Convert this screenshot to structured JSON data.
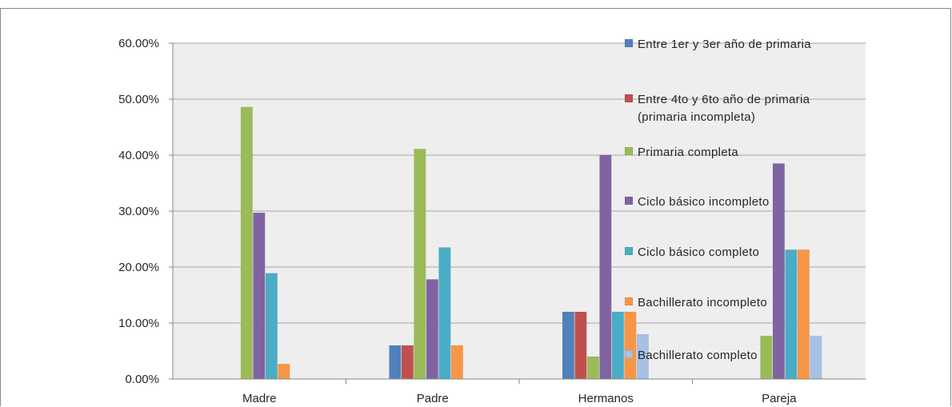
{
  "chart_data": {
    "type": "bar",
    "categories": [
      "Madre",
      "Padre",
      "Hermanos",
      "Pareja"
    ],
    "y_tick_labels": [
      "0.00%",
      "10.00%",
      "20.00%",
      "30.00%",
      "40.00%",
      "50.00%",
      "60.00%"
    ],
    "ylim": [
      0,
      60
    ],
    "grid": true,
    "legend_position": "right",
    "title": "",
    "xlabel": "",
    "ylabel": "",
    "series": [
      {
        "name": "Entre 1er y 3er año de primaria",
        "color": "#4f81bd",
        "values": [
          0,
          6,
          12,
          0
        ]
      },
      {
        "name": "Entre 4to y 6to año de primaria\n(primaria incompleta)",
        "color": "#c0504d",
        "values": [
          0,
          6,
          12,
          0
        ]
      },
      {
        "name": "Primaria completa",
        "color": "#9bbb59",
        "values": [
          48.6,
          41.1,
          4,
          7.7
        ]
      },
      {
        "name": "Ciclo básico incompleto",
        "color": "#8064a2",
        "values": [
          29.7,
          17.8,
          40,
          38.5
        ]
      },
      {
        "name": "Ciclo básico completo",
        "color": "#4bacc6",
        "values": [
          18.9,
          23.5,
          12,
          23.1
        ]
      },
      {
        "name": "Bachillerato incompleto",
        "color": "#f79646",
        "values": [
          2.7,
          6,
          12,
          23.1
        ]
      },
      {
        "name": "Bachillerato completo",
        "color": "#a7c0e4",
        "values": [
          0,
          0,
          8,
          7.7
        ]
      }
    ]
  }
}
